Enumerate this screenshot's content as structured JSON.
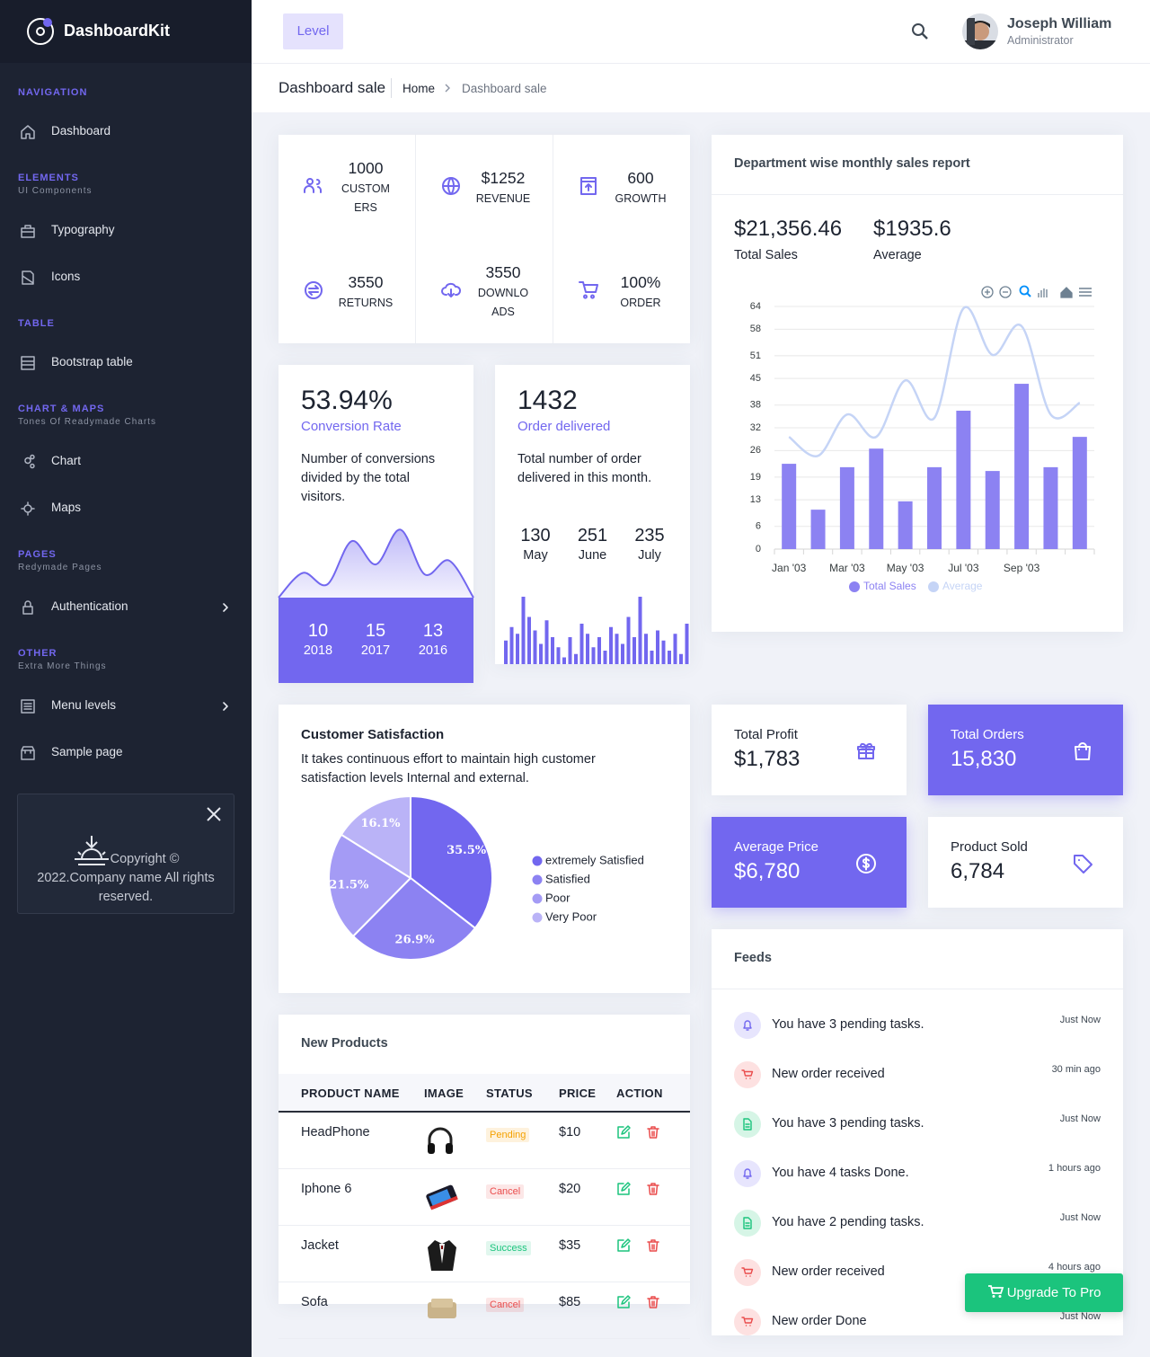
{
  "sidebar": {
    "brand": "DashboardKit",
    "sections": [
      {
        "title": "NAVIGATION",
        "items": [
          {
            "label": "Dashboard"
          }
        ]
      },
      {
        "title": "ELEMENTS",
        "subtitle": "UI Components",
        "items": [
          {
            "label": "Typography"
          },
          {
            "label": "Icons"
          }
        ]
      },
      {
        "title": "TABLE",
        "items": [
          {
            "label": "Bootstrap table"
          }
        ]
      },
      {
        "title": "CHART & MAPS",
        "subtitle": "Tones Of Readymade Charts",
        "items": [
          {
            "label": "Chart"
          },
          {
            "label": "Maps"
          }
        ]
      },
      {
        "title": "PAGES",
        "subtitle": "Redymade Pages",
        "items": [
          {
            "label": "Authentication",
            "submenu": true
          }
        ]
      },
      {
        "title": "OTHER",
        "subtitle": "Extra More Things",
        "items": [
          {
            "label": "Menu levels",
            "submenu": true
          },
          {
            "label": "Sample page"
          }
        ]
      }
    ],
    "footer": "Copyright © 2022.Company name All rights reserved."
  },
  "header": {
    "button": "Level",
    "user": {
      "name": "Joseph William",
      "role": "Administrator"
    }
  },
  "breadcrumb": {
    "title": "Dashboard sale",
    "items": [
      "Home",
      "Dashboard sale"
    ]
  },
  "stats": [
    {
      "value": "1000",
      "label": "CUSTOMERS"
    },
    {
      "value": "$1252",
      "label": "REVENUE"
    },
    {
      "value": "600",
      "label": "GROWTH"
    },
    {
      "value": "3550",
      "label": "RETURNS"
    },
    {
      "value": "3550",
      "label": "DOWNLOADS"
    },
    {
      "value": "100%",
      "label": "ORDER"
    }
  ],
  "conversion": {
    "value": "53.94%",
    "label": "Conversion Rate",
    "description": "Number of conversions divided by the total visitors.",
    "chart_data": {
      "type": "area",
      "values": [
        0,
        32,
        17,
        73,
        43,
        88,
        30,
        48,
        0
      ],
      "ylim": [
        0,
        100
      ],
      "color": "#7267ef"
    },
    "years": [
      {
        "value": 10,
        "year": 2018
      },
      {
        "value": 15,
        "year": 2017
      },
      {
        "value": 13,
        "year": 2016
      }
    ]
  },
  "orders": {
    "value": "1432",
    "label": "Order delivered",
    "description": "Total number of order delivered in this month.",
    "months": [
      {
        "value": 130,
        "month": "May"
      },
      {
        "value": 251,
        "month": "June"
      },
      {
        "value": 235,
        "month": "July"
      }
    ],
    "chart_data": {
      "type": "bar",
      "values": [
        35,
        55,
        45,
        100,
        70,
        50,
        30,
        65,
        40,
        25,
        10,
        40,
        15,
        60,
        45,
        25,
        40,
        20,
        55,
        45,
        30,
        70,
        40,
        100,
        45,
        20,
        50,
        35,
        20,
        45,
        15,
        60
      ],
      "ylim": [
        0,
        100
      ],
      "color": "#7267ef"
    }
  },
  "department": {
    "title": "Department wise monthly sales report",
    "totals": [
      {
        "value": "$21,356.46",
        "label": "Total Sales"
      },
      {
        "value": "$1935.6",
        "label": "Average"
      }
    ],
    "chart_data": {
      "type": "bar-line",
      "categories": [
        "Jan '03",
        null,
        "Mar '03",
        null,
        "May '03",
        null,
        "Jul '03",
        null,
        "Sep '03",
        null,
        null
      ],
      "series": [
        {
          "name": "Total Sales",
          "color": "#8c82f2",
          "values": [
            22.5,
            10.4,
            21.6,
            26.5,
            12.6,
            21.6,
            36.5,
            20.6,
            43.6,
            21.6,
            29.6
          ]
        },
        {
          "name": "Average",
          "color": "#c5d4f6",
          "values": [
            29.6,
            24.6,
            35.5,
            29.6,
            44.5,
            34.6,
            63.5,
            51.2,
            58.8,
            35.5,
            38.6
          ]
        }
      ],
      "ylim": [
        0,
        64
      ],
      "yticks": [
        0,
        6,
        13,
        19,
        26,
        32,
        38,
        45,
        51,
        58,
        64
      ],
      "grid": true
    }
  },
  "satisfaction": {
    "title": "Customer Satisfaction",
    "description": "It takes continuous effort to maintain high customer satisfaction levels Internal and external.",
    "chart_data": {
      "type": "pie",
      "categories": [
        "extremely Satisfied",
        "Satisfied",
        "Poor",
        "Very Poor"
      ],
      "values": [
        35.5,
        26.9,
        21.5,
        16.1
      ],
      "value_labels": [
        "35.5%",
        "26.9%",
        "21.5%",
        "16.1%"
      ],
      "colors": [
        "#7267ef",
        "#8c82f2",
        "#a49bf5",
        "#bab3f7"
      ]
    }
  },
  "summary": [
    {
      "title": "Total Profit",
      "value": "$1,783",
      "highlight": false
    },
    {
      "title": "Total Orders",
      "value": "15,830",
      "highlight": true
    },
    {
      "title": "Average Price",
      "value": "$6,780",
      "highlight": true
    },
    {
      "title": "Product Sold",
      "value": "6,784",
      "highlight": false
    }
  ],
  "products": {
    "title": "New Products",
    "columns": [
      "PRODUCT NAME",
      "IMAGE",
      "STATUS",
      "PRICE",
      "ACTION"
    ],
    "rows": [
      {
        "name": "HeadPhone",
        "status": "Pending",
        "status_color": "#f4a100",
        "price": "$10"
      },
      {
        "name": "Iphone 6",
        "status": "Cancel",
        "status_color": "#ea4d4d",
        "price": "$20"
      },
      {
        "name": "Jacket",
        "status": "Success",
        "status_color": "#1bc47d",
        "price": "$35"
      },
      {
        "name": "Sofa",
        "status": "Cancel",
        "status_color": "#ea4d4d",
        "price": "$85"
      }
    ]
  },
  "feeds": {
    "title": "Feeds",
    "items": [
      {
        "text": "You have 3 pending tasks.",
        "time": "Just Now",
        "icon": "bell"
      },
      {
        "text": "New order received",
        "time": "30 min ago",
        "icon": "cart"
      },
      {
        "text": "You have 3 pending tasks.",
        "time": "Just Now",
        "icon": "doc"
      },
      {
        "text": "You have 4 tasks Done.",
        "time": "1 hours ago",
        "icon": "bell"
      },
      {
        "text": "You have 2 pending tasks.",
        "time": "Just Now",
        "icon": "doc"
      },
      {
        "text": "New order received",
        "time": "4 hours ago",
        "icon": "cart"
      },
      {
        "text": "New order Done",
        "time": "Just Now",
        "icon": "cart"
      }
    ]
  },
  "upgrade": "Upgrade To Pro"
}
